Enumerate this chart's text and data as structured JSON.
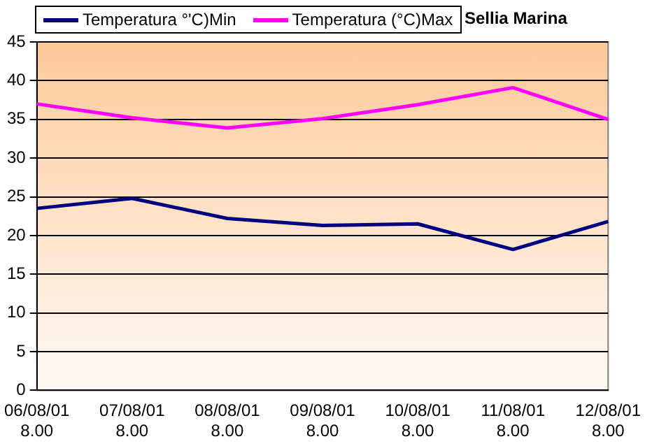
{
  "chart_data": {
    "type": "line",
    "title": "Sellia Marina",
    "categories": [
      "06/08/01 8.00",
      "07/08/01 8.00",
      "08/08/01 8.00",
      "09/08/01 8.00",
      "10/08/01 8.00",
      "11/08/01 8.00",
      "12/08/01 8.00"
    ],
    "series": [
      {
        "name": "Temperatura °'C)Min",
        "color": "#000080",
        "values": [
          23.5,
          24.8,
          22.2,
          21.3,
          21.5,
          18.2,
          21.8
        ]
      },
      {
        "name": "Temperatura (°C)Max",
        "color": "#ff00ff",
        "values": [
          37.0,
          35.2,
          33.9,
          35.1,
          36.9,
          39.1,
          35.0
        ]
      }
    ],
    "ylim": [
      0,
      45
    ],
    "yticks": [
      0,
      5,
      10,
      15,
      20,
      25,
      30,
      35,
      40,
      45
    ],
    "grid": "y",
    "legend": "top",
    "marker": "none",
    "line_style": "solid"
  }
}
